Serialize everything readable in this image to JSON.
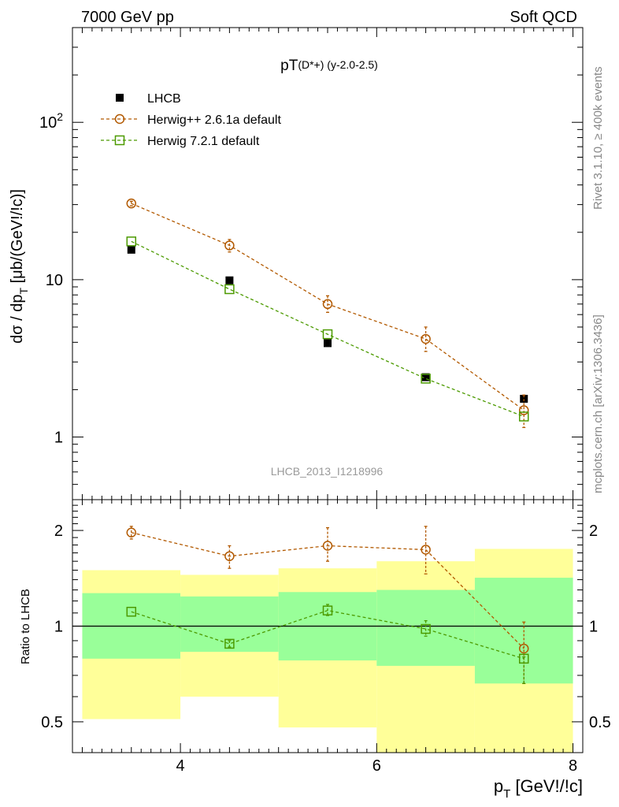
{
  "header": {
    "left": "7000 GeV pp",
    "right": "Soft QCD"
  },
  "side": {
    "rivet": "Rivet 3.1.10, ≥ 400k events",
    "mcplots": "mcplots.cern.ch [arXiv:1306.3436]"
  },
  "chart_data": [
    {
      "type": "scatter",
      "panel": "main",
      "title": "pT(D*+) (y-2.0-2.5)",
      "title_parts": {
        "main": "pT",
        "sub": "(D*+) (y-2.0-2.5)"
      },
      "ylabel": "dσ / dp_T [μb/(GeV!/!c)]",
      "ylabel_parts": {
        "a": "dσ / dp",
        "sub": "T",
        "b": " [μb/(GeV!/!c)]"
      },
      "yscale": "log",
      "ylim": [
        0.4,
        400
      ],
      "xlim": [
        2.9,
        8.1
      ],
      "y_ticks": [
        {
          "v": 1,
          "label": "1"
        },
        {
          "v": 10,
          "label": "10"
        },
        {
          "v": 100,
          "label": "10",
          "exp": "2"
        }
      ],
      "watermark": "LHCB_2013_I1218996",
      "legend_position": "top-left",
      "series": [
        {
          "name": "LHCB",
          "color": "#000000",
          "marker": "filled-square",
          "line": "none",
          "x": [
            3.5,
            4.5,
            5.5,
            6.5,
            7.5
          ],
          "y": [
            15.5,
            9.9,
            3.95,
            2.4,
            1.75
          ]
        },
        {
          "name": "Herwig++ 2.6.1a default",
          "color": "#b25900",
          "marker": "open-circle",
          "line": "dashed",
          "x": [
            3.5,
            4.5,
            5.5,
            6.5,
            7.5
          ],
          "y": [
            30.5,
            16.5,
            7.0,
            4.2,
            1.48
          ],
          "yerr_low": [
            29.5,
            15.0,
            6.2,
            3.5,
            1.15
          ],
          "yerr_high": [
            31.5,
            18.0,
            7.9,
            5.0,
            1.85
          ]
        },
        {
          "name": "Herwig 7.2.1 default",
          "color": "#4c9a00",
          "marker": "open-square",
          "line": "dashed",
          "x": [
            3.5,
            4.5,
            5.5,
            6.5,
            7.5
          ],
          "y": [
            17.5,
            8.7,
            4.5,
            2.35,
            1.35
          ]
        }
      ]
    },
    {
      "type": "scatter",
      "panel": "ratio",
      "ylabel": "Ratio to LHCB",
      "xlabel": "p_T [GeV!/!c]",
      "xlabel_parts": {
        "a": "p",
        "sub": "T",
        "b": " [GeV!/!c]"
      },
      "yscale": "log",
      "ylim": [
        0.4,
        2.5
      ],
      "xlim": [
        2.9,
        8.1
      ],
      "x_ticks": [
        4,
        6,
        8
      ],
      "y_ticks": [
        {
          "v": 0.5,
          "label": "0.5"
        },
        {
          "v": 1,
          "label": "1"
        },
        {
          "v": 2,
          "label": "2"
        }
      ],
      "bands": [
        {
          "x0": 3.0,
          "x1": 4.0,
          "inner": [
            0.79,
            1.27
          ],
          "outer": [
            0.51,
            1.5
          ]
        },
        {
          "x0": 4.0,
          "x1": 5.0,
          "inner": [
            0.83,
            1.24
          ],
          "outer": [
            0.6,
            1.45
          ]
        },
        {
          "x0": 5.0,
          "x1": 6.0,
          "inner": [
            0.78,
            1.28
          ],
          "outer": [
            0.48,
            1.52
          ]
        },
        {
          "x0": 6.0,
          "x1": 7.0,
          "inner": [
            0.75,
            1.3
          ],
          "outer": [
            0.38,
            1.6
          ]
        },
        {
          "x0": 7.0,
          "x1": 8.0,
          "inner": [
            0.66,
            1.42
          ],
          "outer": [
            0.37,
            1.75
          ]
        }
      ],
      "colors": {
        "inner": "#99ff99",
        "outer": "#ffff99"
      },
      "series": [
        {
          "name": "Herwig++ 2.6.1a default",
          "color": "#b25900",
          "marker": "open-circle",
          "x": [
            3.5,
            4.5,
            5.5,
            6.5,
            7.5
          ],
          "y": [
            1.97,
            1.66,
            1.79,
            1.74,
            0.85
          ],
          "yerr_low": [
            1.88,
            1.52,
            1.6,
            1.46,
            0.66
          ],
          "yerr_high": [
            2.06,
            1.79,
            2.04,
            2.06,
            1.03
          ]
        },
        {
          "name": "Herwig 7.2.1 default",
          "color": "#4c9a00",
          "marker": "open-square",
          "x": [
            3.5,
            4.5,
            5.5,
            6.5,
            7.5
          ],
          "y": [
            1.11,
            0.88,
            1.12,
            0.98,
            0.79
          ],
          "yerr_low": [
            1.11,
            0.86,
            1.08,
            0.93,
            0.66
          ],
          "yerr_high": [
            1.11,
            0.9,
            1.17,
            1.04,
            0.8
          ]
        }
      ]
    }
  ]
}
